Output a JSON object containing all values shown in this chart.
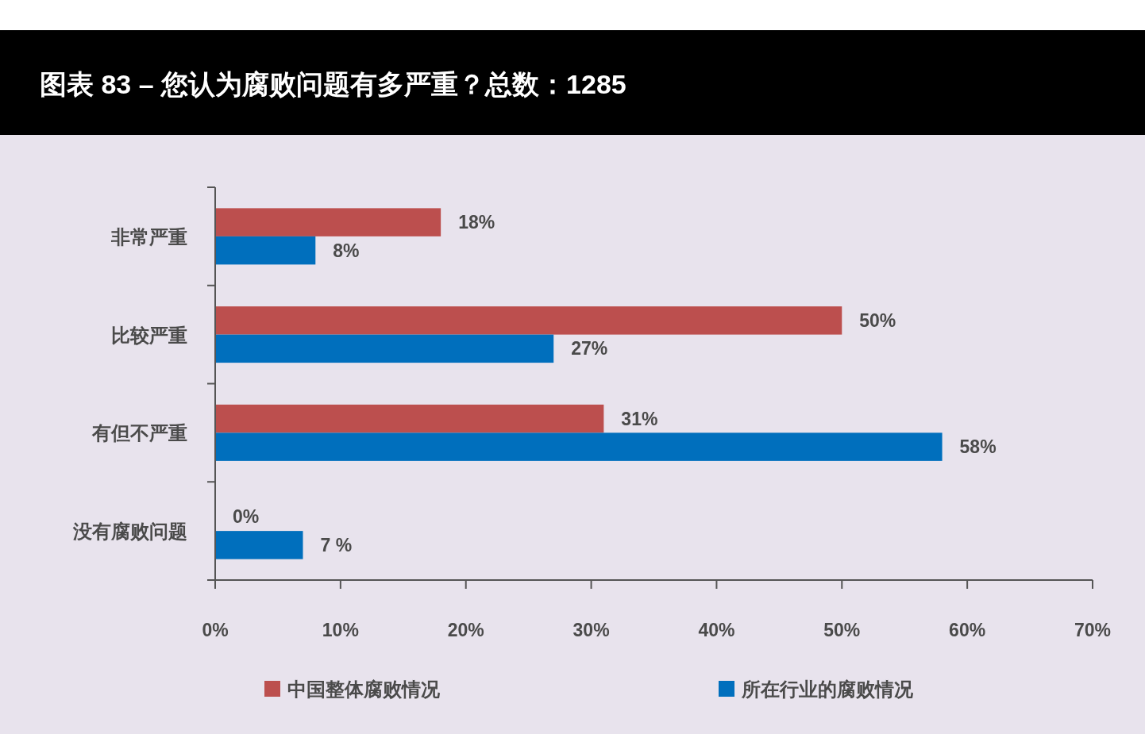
{
  "chart_data": {
    "type": "bar",
    "orientation": "horizontal",
    "title": "图表 83 – 您认为腐败问题有多严重？总数：1285",
    "categories": [
      "非常严重",
      "比较严重",
      "有但不严重",
      "没有腐败问题"
    ],
    "series": [
      {
        "name": "中国整体腐败情况",
        "color": "#bc4f4e",
        "values": [
          18,
          50,
          31,
          0
        ],
        "value_labels": [
          "18%",
          "50%",
          "31%",
          "0%"
        ]
      },
      {
        "name": "所在行业的腐败情况",
        "color": "#006fbd",
        "values": [
          8,
          27,
          58,
          7
        ],
        "value_labels": [
          "8%",
          "27%",
          "58%",
          "7 %"
        ]
      }
    ],
    "xlim": [
      0,
      70
    ],
    "xticks": [
      {
        "value": 0,
        "label": "0%"
      },
      {
        "value": 10,
        "label": "10%"
      },
      {
        "value": 20,
        "label": "20%"
      },
      {
        "value": 30,
        "label": "30%"
      },
      {
        "value": 40,
        "label": "40%"
      },
      {
        "value": 50,
        "label": "50%"
      },
      {
        "value": 60,
        "label": "60%"
      },
      {
        "value": 70,
        "label": "70%"
      }
    ],
    "legend": "bottom",
    "grid": false
  }
}
